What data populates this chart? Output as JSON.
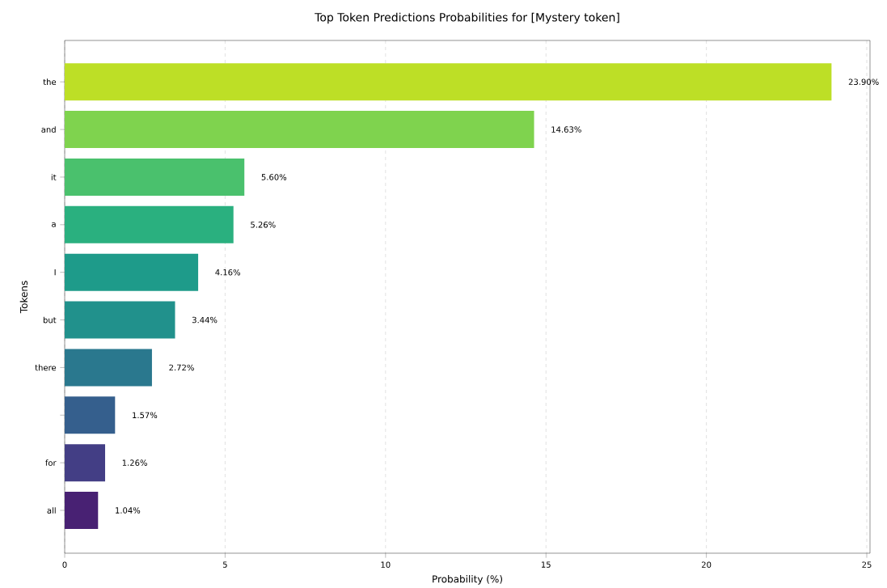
{
  "chart_data": {
    "type": "bar",
    "orientation": "horizontal",
    "title": "Top Token Predictions Probabilities for [Mystery token]",
    "xlabel": "Probability (%)",
    "ylabel": "Tokens",
    "categories": [
      "the",
      "and",
      "it",
      "a",
      "I",
      "but",
      "there",
      null,
      "for",
      "all"
    ],
    "values": [
      23.9,
      14.63,
      5.6,
      5.26,
      4.16,
      3.44,
      2.72,
      1.57,
      1.26,
      1.04
    ],
    "colors": [
      "#bddf26",
      "#7fd34e",
      "#4ac16d",
      "#2ab07f",
      "#1e9b8a",
      "#21918c",
      "#2a788e",
      "#355f8d",
      "#433e85",
      "#482173"
    ],
    "value_labels": [
      "23.90%",
      "14.63%",
      "5.60%",
      "5.26%",
      "4.16%",
      "3.44%",
      "2.72%",
      "1.57%",
      "1.26%",
      "1.04%"
    ],
    "xlim": [
      0,
      25.1
    ],
    "xticks": [
      0,
      5,
      10,
      15,
      20,
      25
    ],
    "grid": "x"
  }
}
